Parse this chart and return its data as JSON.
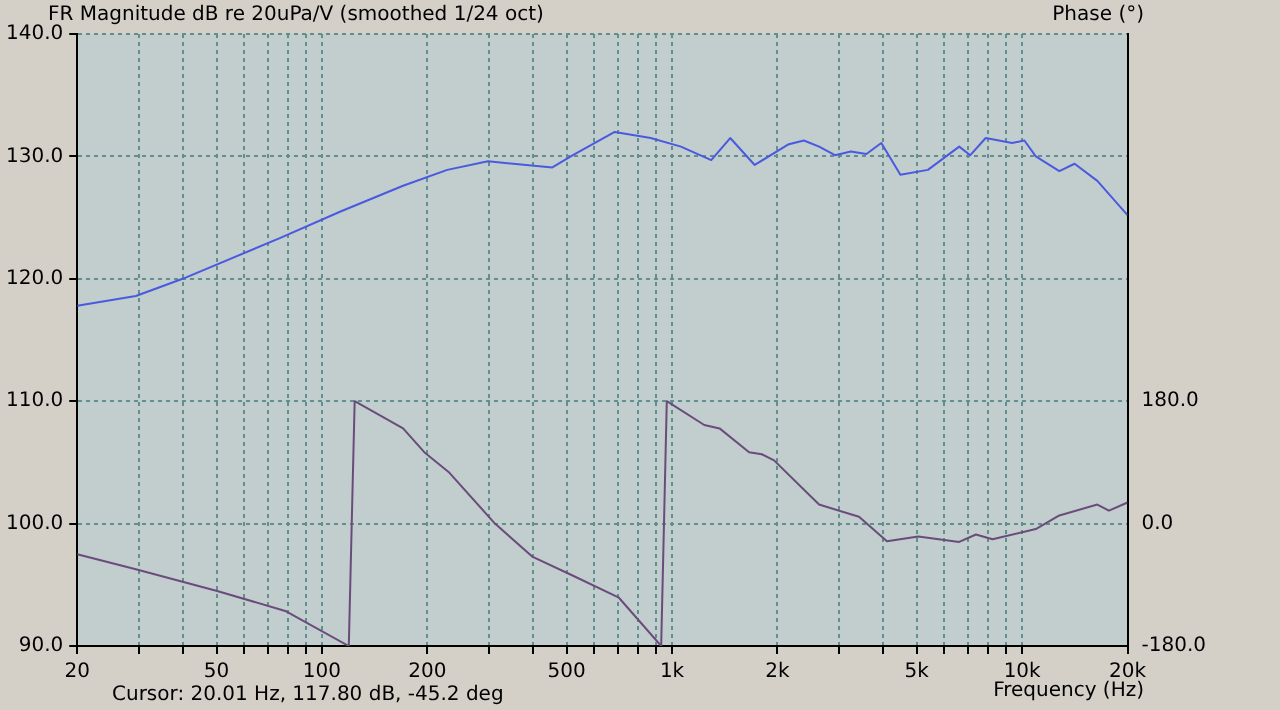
{
  "chart_data": {
    "type": "line",
    "title": "FR Magnitude dB re 20uPa/V (smoothed 1/24 oct)",
    "xlabel": "Frequency (Hz)",
    "y2label": "Phase (°)",
    "annotations": [
      "Cursor: 20.01 Hz, 117.80 dB, -45.2 deg"
    ],
    "log": "x",
    "grid": true,
    "legend": false,
    "marker": "none",
    "line_style": "solid",
    "xlim": [
      20,
      20000
    ],
    "xticks": [
      20,
      {
        "value": 30,
        "label": null
      },
      {
        "value": 40,
        "label": null
      },
      50,
      {
        "value": 60,
        "label": null
      },
      {
        "value": 70,
        "label": null
      },
      {
        "value": 80,
        "label": null
      },
      {
        "value": 90,
        "label": null
      },
      100,
      200,
      {
        "value": 300,
        "label": null
      },
      {
        "value": 400,
        "label": null
      },
      500,
      {
        "value": 600,
        "label": null
      },
      {
        "value": 700,
        "label": null
      },
      {
        "value": 800,
        "label": null
      },
      {
        "value": 900,
        "label": null
      },
      {
        "value": 1000,
        "label": "1k"
      },
      {
        "value": 2000,
        "label": "2k"
      },
      {
        "value": 3000,
        "label": null
      },
      {
        "value": 4000,
        "label": null
      },
      {
        "value": 5000,
        "label": "5k"
      },
      {
        "value": 6000,
        "label": null
      },
      {
        "value": 7000,
        "label": null
      },
      {
        "value": 8000,
        "label": null
      },
      {
        "value": 9000,
        "label": null
      },
      {
        "value": 10000,
        "label": "10k"
      },
      {
        "value": 20000,
        "label": "20k"
      }
    ],
    "ylim": [
      90,
      140
    ],
    "yticks": [
      {
        "value": 90,
        "label": "90.0"
      },
      {
        "value": 100,
        "label": "100.0"
      },
      {
        "value": 110,
        "label": "110.0"
      },
      {
        "value": 120,
        "label": "120.0"
      },
      {
        "value": 130,
        "label": "130.0"
      },
      {
        "value": 140,
        "label": "140.0"
      }
    ],
    "y2lim": [
      -180,
      720
    ],
    "y2ticks": [
      {
        "value": -180,
        "label": "-180.0"
      },
      {
        "value": 0,
        "label": "0.0"
      },
      {
        "value": 180,
        "label": "180.0"
      }
    ],
    "series": [
      {
        "color": "#4a5ae0",
        "x": [
          20,
          29.4,
          40,
          75.5,
          113,
          170.5,
          228,
          298,
          455,
          521,
          686,
          869,
          1060,
          1294,
          1466,
          1722,
          2155,
          2380,
          2630,
          2920,
          3240,
          3590,
          3960,
          4490,
          5380,
          6610,
          7110,
          7870,
          9360,
          10150,
          10940,
          12770,
          14120,
          16400,
          20000
        ],
        "values": [
          117.8,
          118.6,
          120.0,
          123.3,
          125.5,
          127.6,
          128.9,
          129.6,
          129.1,
          130.1,
          132.0,
          131.5,
          130.8,
          129.7,
          131.5,
          129.3,
          131.0,
          131.3,
          130.8,
          130.1,
          130.4,
          130.2,
          131.1,
          128.5,
          128.9,
          130.8,
          130.1,
          131.5,
          131.1,
          131.3,
          130.0,
          128.8,
          129.4,
          128.0,
          125.2
        ]
      },
      {
        "color": "#6a4c7c",
        "axis": "y2",
        "x": [
          20,
          29.4,
          50.2,
          79,
          119.3,
          124,
          170.5,
          196,
          230,
          312,
          400,
          518,
          705,
          931,
          966,
          1236,
          1367,
          1660,
          1804,
          1956,
          2630,
          3420,
          4110,
          5050,
          6610,
          7380,
          8230,
          10940,
          12770,
          16400,
          17700,
          20000
        ],
        "values": [
          -45,
          -67,
          -99,
          -129,
          -180,
          180,
          140,
          105,
          76,
          0,
          -49,
          -76,
          -109,
          -180,
          180,
          145,
          140,
          105,
          102,
          93,
          28,
          10,
          -26,
          -19,
          -27,
          -16,
          -23,
          -8,
          12,
          28,
          19,
          31
        ]
      }
    ]
  }
}
